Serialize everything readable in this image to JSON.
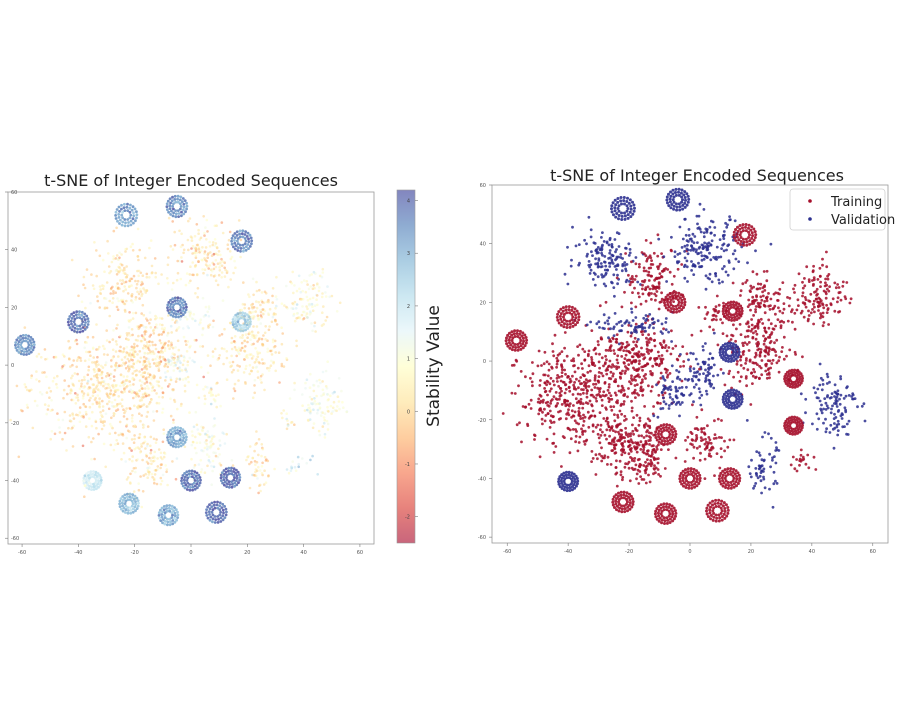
{
  "figure": {
    "background": "#ffffff"
  },
  "chart_data": [
    {
      "type": "scatter",
      "title": "t-SNE of Integer Encoded Sequences",
      "xlim": [
        -65,
        65
      ],
      "ylim": [
        -62,
        60
      ],
      "xticks": [
        -60,
        -40,
        -20,
        0,
        20,
        40,
        60
      ],
      "yticks": [
        -60,
        -40,
        -20,
        0,
        20,
        40,
        60
      ],
      "grid": false,
      "colorbar": {
        "label": "Stability Value",
        "range": [
          -2.5,
          4.2
        ],
        "ticks": [
          -2,
          -1,
          0,
          1,
          2,
          3,
          4
        ],
        "colormap": "RdYlBu",
        "stops": [
          "#a50026",
          "#d73027",
          "#f46d43",
          "#fdae61",
          "#fee090",
          "#ffffbf",
          "#e0f3f8",
          "#abd9e9",
          "#74add1",
          "#4575b4",
          "#313695"
        ],
        "marker_alpha": 0.5
      },
      "clusters": [
        {
          "name": "bulk-left",
          "cx": -30,
          "cy": -8,
          "rx": 25,
          "ry": 17,
          "stability": 0.1
        },
        {
          "name": "bulk-center",
          "cx": -14,
          "cy": 5,
          "rx": 14,
          "ry": 13,
          "stability": 0.05
        },
        {
          "name": "upper-left-blob",
          "cx": -24,
          "cy": 28,
          "rx": 11,
          "ry": 12,
          "stability": 0.05
        },
        {
          "name": "upper-mid-blob",
          "cx": 5,
          "cy": 38,
          "rx": 11,
          "ry": 11,
          "stability": 0.2
        },
        {
          "name": "right-upper-blob",
          "cx": 24,
          "cy": 19,
          "rx": 7,
          "ry": 8,
          "stability": 0.3
        },
        {
          "name": "far-right-upper",
          "cx": 41,
          "cy": 22,
          "rx": 8,
          "ry": 10,
          "stability": 0.8
        },
        {
          "name": "right-middle-blob",
          "cx": 21,
          "cy": 4,
          "rx": 12,
          "ry": 11,
          "stability": 0.1
        },
        {
          "name": "far-right-lower",
          "cx": 47,
          "cy": -13,
          "rx": 7,
          "ry": 10,
          "stability": 1.1
        },
        {
          "name": "lower-left-blob",
          "cx": -16,
          "cy": -33,
          "rx": 8,
          "ry": 10,
          "stability": 0.2
        },
        {
          "name": "lower-center-blob",
          "cx": 6,
          "cy": -28,
          "rx": 7,
          "ry": 9,
          "stability": 1.0
        },
        {
          "name": "lower-right-blob",
          "cx": 24,
          "cy": -36,
          "rx": 4,
          "ry": 9,
          "stability": 0.1
        },
        {
          "name": "mid-cluster-1",
          "cx": -5,
          "cy": 0,
          "rx": 5,
          "ry": 5,
          "stability": 1.4
        },
        {
          "name": "mid-cluster-2",
          "cx": 2,
          "cy": 16,
          "rx": 6,
          "ry": 4,
          "stability": 1.2
        },
        {
          "name": "mid-cluster-3",
          "cx": 8,
          "cy": -10,
          "rx": 4,
          "ry": 4,
          "stability": 0.8
        },
        {
          "name": "mid-cluster-4",
          "cx": 34,
          "cy": -20,
          "rx": 3,
          "ry": 3,
          "stability": 0.7
        },
        {
          "name": "mid-cluster-5",
          "cx": 38,
          "cy": -35,
          "rx": 4,
          "ry": 3,
          "stability": 2.0
        }
      ],
      "rings": [
        {
          "cx": -23,
          "cy": 52,
          "r": 3.6,
          "stability": 3.2
        },
        {
          "cx": -5,
          "cy": 55,
          "r": 3.4,
          "stability": 3.5
        },
        {
          "cx": 18,
          "cy": 43,
          "r": 3.4,
          "stability": 3.6
        },
        {
          "cx": -40,
          "cy": 15,
          "r": 3.4,
          "stability": 3.8
        },
        {
          "cx": -59,
          "cy": 7,
          "r": 3.2,
          "stability": 3.4
        },
        {
          "cx": -5,
          "cy": 20,
          "r": 3.2,
          "stability": 3.6
        },
        {
          "cx": -5,
          "cy": -25,
          "r": 3.2,
          "stability": 3.1
        },
        {
          "cx": 0,
          "cy": -40,
          "r": 3.2,
          "stability": 3.8
        },
        {
          "cx": 14,
          "cy": -39,
          "r": 3.2,
          "stability": 3.9
        },
        {
          "cx": 9,
          "cy": -51,
          "r": 3.4,
          "stability": 4.0
        },
        {
          "cx": -8,
          "cy": -52,
          "r": 3.2,
          "stability": 3.0
        },
        {
          "cx": -22,
          "cy": -48,
          "r": 3.2,
          "stability": 2.8
        },
        {
          "cx": -35,
          "cy": -40,
          "r": 3.0,
          "stability": 1.8
        },
        {
          "cx": 18,
          "cy": 15,
          "r": 3.0,
          "stability": 2.4
        }
      ]
    },
    {
      "type": "scatter",
      "title": "t-SNE of Integer Encoded Sequences",
      "xlim": [
        -65,
        65
      ],
      "ylim": [
        -62,
        60
      ],
      "xticks": [
        -60,
        -40,
        -20,
        0,
        20,
        40,
        60
      ],
      "yticks": [
        -60,
        -40,
        -20,
        0,
        20,
        40,
        60
      ],
      "grid": false,
      "legend": {
        "position": "top-right"
      },
      "series": [
        {
          "name": "Training",
          "color": "#a50e2a"
        },
        {
          "name": "Validation",
          "color": "#2b2f8f"
        }
      ],
      "clusters": [
        {
          "name": "bulk-left",
          "cx": -36,
          "cy": -12,
          "rx": 18,
          "ry": 16,
          "series": "Training"
        },
        {
          "name": "bulk-center",
          "cx": -18,
          "cy": 0,
          "rx": 14,
          "ry": 12,
          "series": "Training"
        },
        {
          "name": "left-lower-bulk",
          "cx": -22,
          "cy": -28,
          "rx": 10,
          "ry": 8,
          "series": "Training"
        },
        {
          "name": "upper-left-validation",
          "cx": -27,
          "cy": 35,
          "rx": 10,
          "ry": 9,
          "series": "Validation"
        },
        {
          "name": "upper-left-training",
          "cx": -12,
          "cy": 28,
          "rx": 8,
          "ry": 10,
          "series": "Training"
        },
        {
          "name": "mid-left-validation",
          "cx": -18,
          "cy": 12,
          "rx": 12,
          "ry": 4,
          "series": "Validation"
        },
        {
          "name": "upper-mid-validation",
          "cx": 5,
          "cy": 38,
          "rx": 11,
          "ry": 10,
          "series": "Validation"
        },
        {
          "name": "mid-right-validation",
          "cx": 4,
          "cy": -5,
          "rx": 6,
          "ry": 8,
          "series": "Validation"
        },
        {
          "name": "center-validation",
          "cx": -6,
          "cy": -12,
          "rx": 5,
          "ry": 7,
          "series": "Validation"
        },
        {
          "name": "right-upper-training",
          "cx": 24,
          "cy": 20,
          "rx": 8,
          "ry": 8,
          "series": "Training"
        },
        {
          "name": "far-right-upper-training",
          "cx": 43,
          "cy": 23,
          "rx": 8,
          "ry": 10,
          "series": "Training"
        },
        {
          "name": "right-middle-training",
          "cx": 22,
          "cy": 3,
          "rx": 11,
          "ry": 11,
          "series": "Training"
        },
        {
          "name": "far-right-validation",
          "cx": 47,
          "cy": -14,
          "rx": 7,
          "ry": 10,
          "series": "Validation"
        },
        {
          "name": "lower-left-training",
          "cx": -16,
          "cy": -33,
          "rx": 8,
          "ry": 9,
          "series": "Training"
        },
        {
          "name": "lower-center-training",
          "cx": 6,
          "cy": -28,
          "rx": 6,
          "ry": 8,
          "series": "Training"
        },
        {
          "name": "lower-right-validation",
          "cx": 24,
          "cy": -36,
          "rx": 4,
          "ry": 9,
          "series": "Validation"
        },
        {
          "name": "small-right-training",
          "cx": 37,
          "cy": -34,
          "rx": 4,
          "ry": 3,
          "series": "Training"
        },
        {
          "name": "small-mid-training",
          "cx": 8,
          "cy": 17,
          "rx": 4,
          "ry": 4,
          "series": "Training"
        }
      ],
      "rings": [
        {
          "cx": -22,
          "cy": 52,
          "r": 3.6,
          "series": "Validation"
        },
        {
          "cx": -4,
          "cy": 55,
          "r": 3.4,
          "series": "Validation"
        },
        {
          "cx": 18,
          "cy": 43,
          "r": 3.4,
          "series": "Training"
        },
        {
          "cx": -40,
          "cy": 15,
          "r": 3.4,
          "series": "Training"
        },
        {
          "cx": -57,
          "cy": 7,
          "r": 3.2,
          "series": "Training"
        },
        {
          "cx": -5,
          "cy": 20,
          "r": 3.2,
          "series": "Training"
        },
        {
          "cx": 14,
          "cy": 17,
          "r": 3.0,
          "series": "Training"
        },
        {
          "cx": 13,
          "cy": 3,
          "r": 3.0,
          "series": "Validation"
        },
        {
          "cx": 14,
          "cy": -13,
          "r": 3.0,
          "series": "Validation"
        },
        {
          "cx": -8,
          "cy": -25,
          "r": 3.2,
          "series": "Training"
        },
        {
          "cx": 0,
          "cy": -40,
          "r": 3.2,
          "series": "Training"
        },
        {
          "cx": 13,
          "cy": -40,
          "r": 3.2,
          "series": "Training"
        },
        {
          "cx": 9,
          "cy": -51,
          "r": 3.4,
          "series": "Training"
        },
        {
          "cx": -8,
          "cy": -52,
          "r": 3.2,
          "series": "Training"
        },
        {
          "cx": -22,
          "cy": -48,
          "r": 3.2,
          "series": "Training"
        },
        {
          "cx": -40,
          "cy": -41,
          "r": 3.0,
          "series": "Validation"
        },
        {
          "cx": 34,
          "cy": -22,
          "r": 2.8,
          "series": "Training"
        },
        {
          "cx": 34,
          "cy": -6,
          "r": 2.8,
          "series": "Training"
        }
      ]
    }
  ]
}
